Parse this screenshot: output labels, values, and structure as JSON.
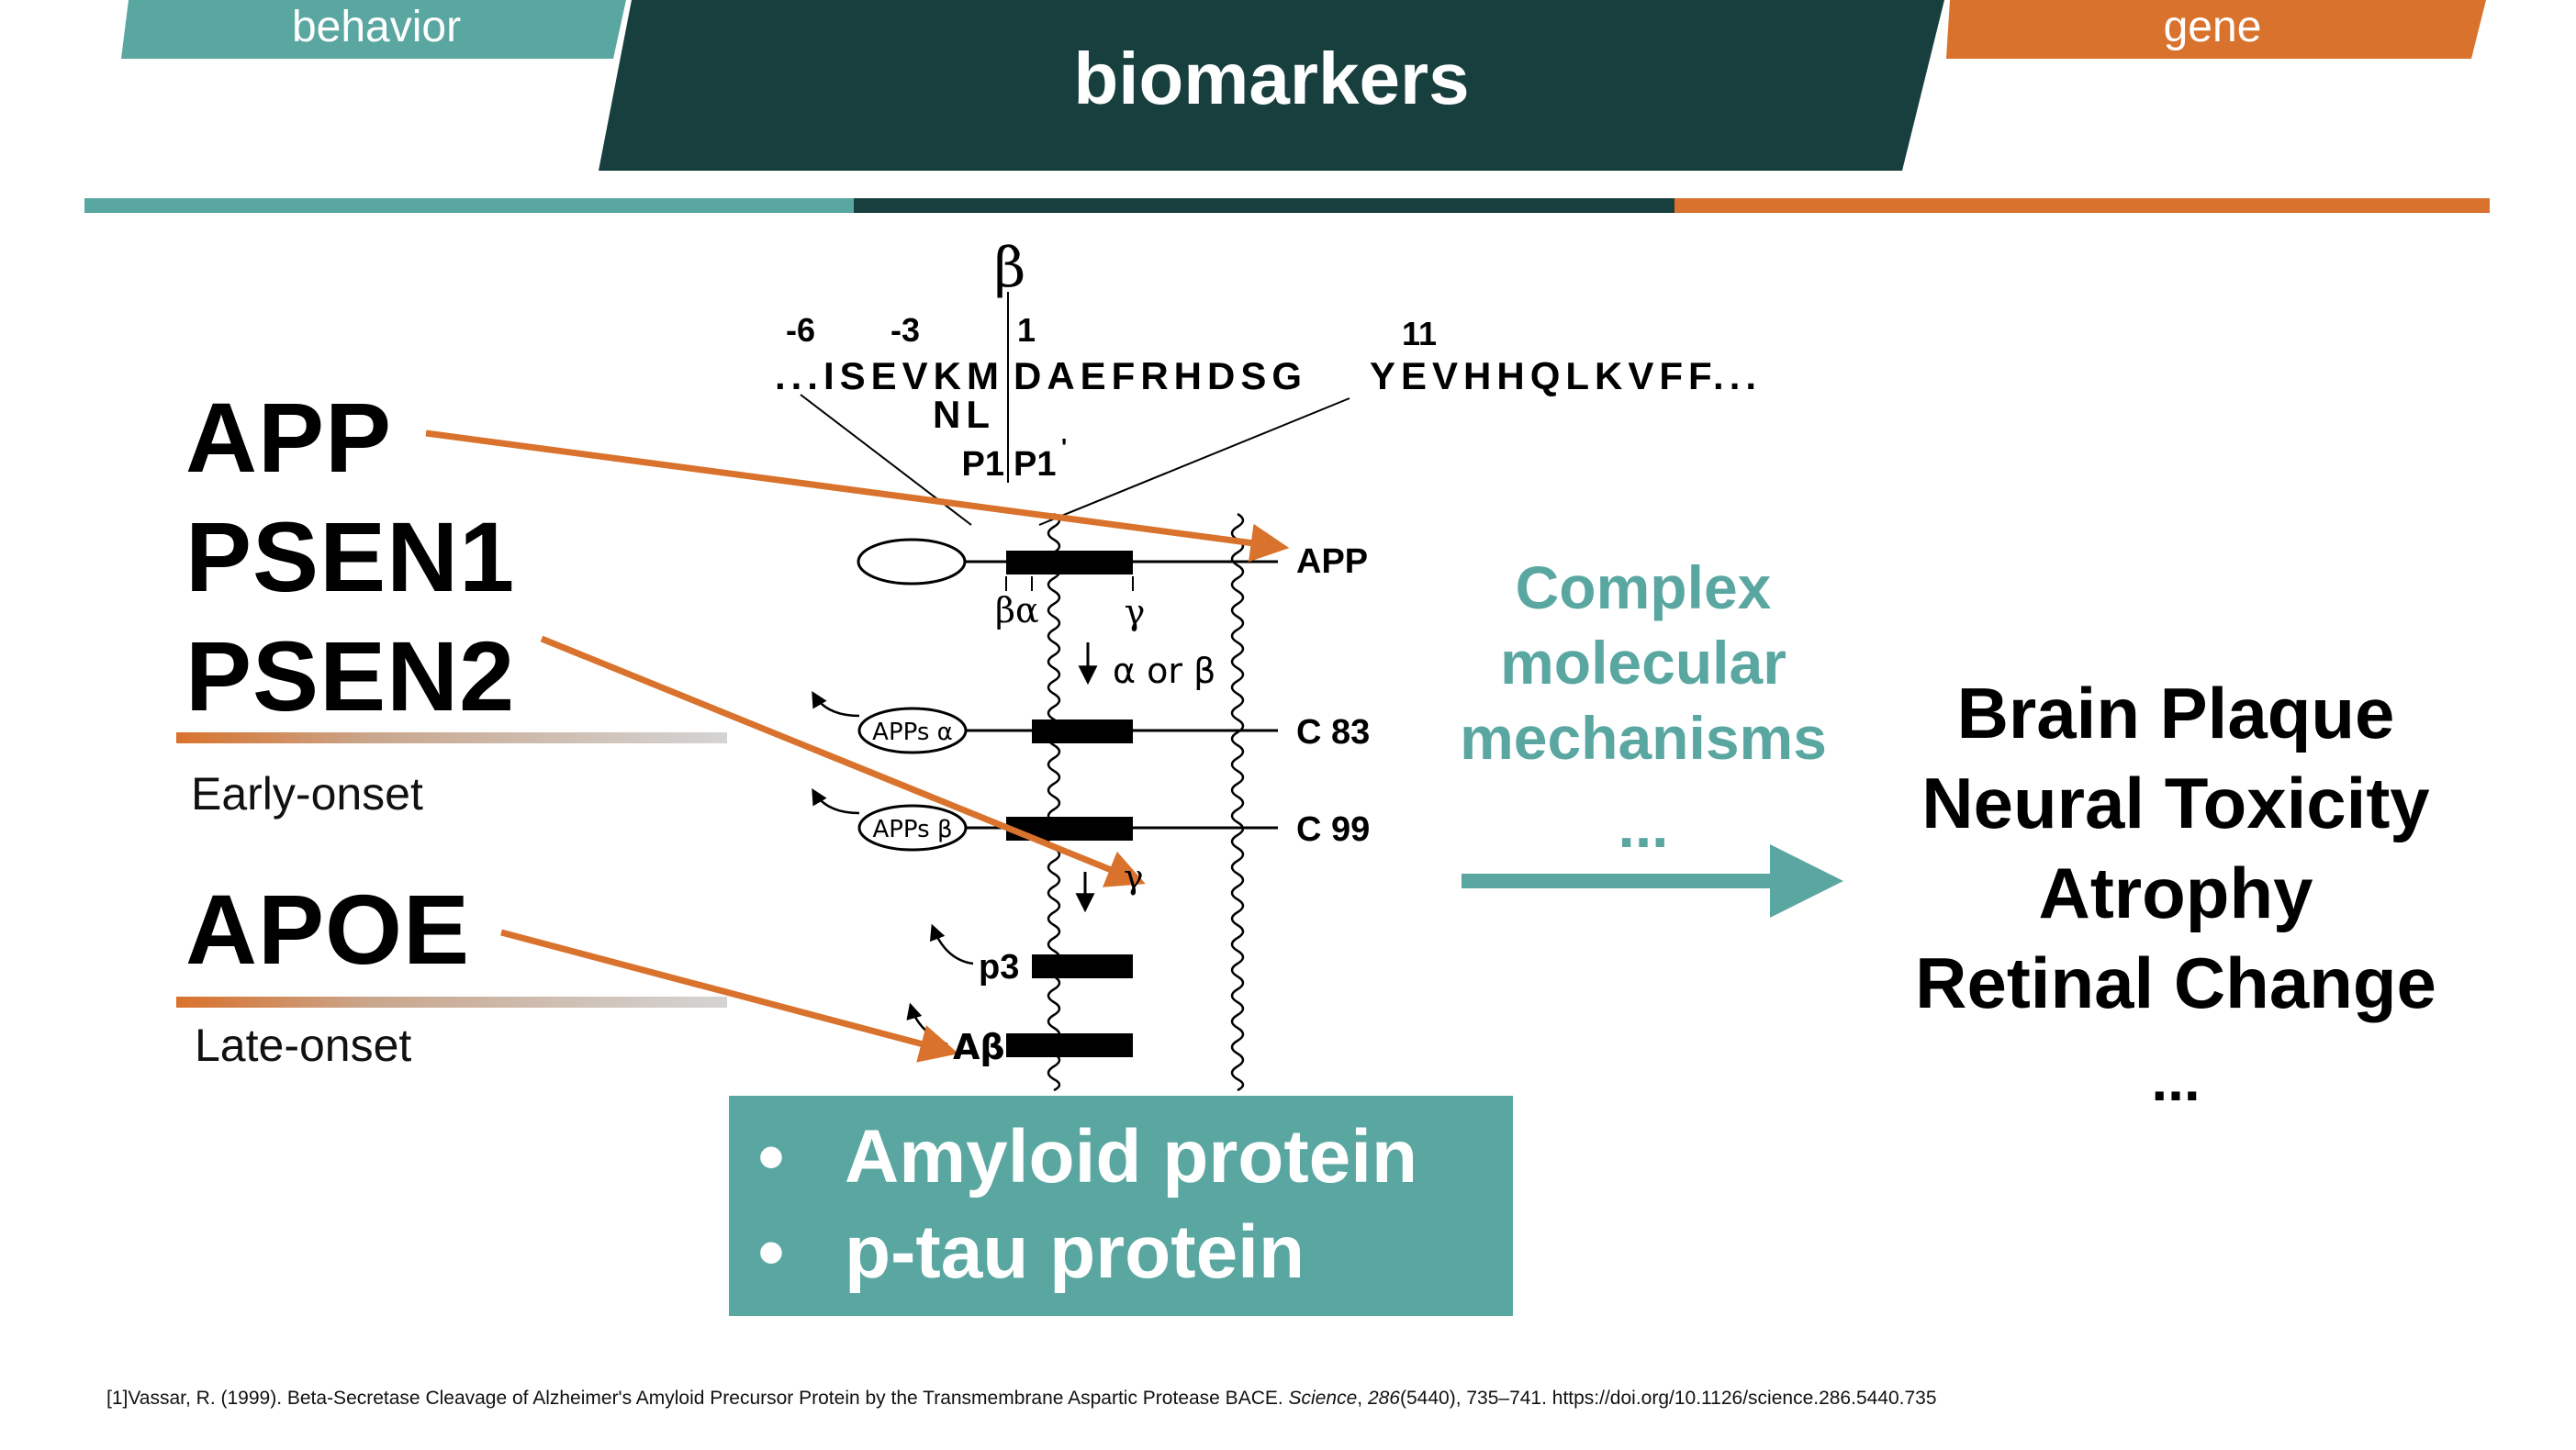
{
  "header": {
    "tab_left": "behavior",
    "tab_center": "biomarkers",
    "tab_right": "gene",
    "colors": {
      "teal": "#5aa7a1",
      "dark": "#173f3e",
      "orange": "#d9722c"
    }
  },
  "genes": {
    "early": [
      "APP",
      "PSEN1",
      "PSEN2"
    ],
    "early_label": "Early-onset",
    "late": [
      "APOE"
    ],
    "late_label": "Late-onset"
  },
  "diagram": {
    "beta_symbol": "β",
    "positions": {
      "m6": "-6",
      "m3": "-3",
      "p1": "1",
      "p11": "11"
    },
    "sequence_left": "...ISEVKM",
    "sequence_mid": "DAEFRHDSG",
    "sequence_right": "YEVHHQLKVFF...",
    "mutation": "NL",
    "p1_label": "P1",
    "p1prime_label": "P1",
    "prime_mark": "'",
    "app_label": "APP",
    "cleavage_labels": {
      "beta_alpha": "βα",
      "gamma": "γ"
    },
    "alpha_or_beta": "α or β",
    "c83_label": "C 83",
    "c99_label": "C 99",
    "apps_alpha": "APPs α",
    "apps_beta": "APPs β",
    "gamma2": "γ",
    "p3_label": "p3",
    "abeta_label": "Aβ"
  },
  "mechanisms": {
    "lines": [
      "Complex",
      "molecular",
      "mechanisms"
    ],
    "ellipsis": "..."
  },
  "outcomes": {
    "items": [
      "Brain Plaque",
      "Neural Toxicity",
      "Atrophy",
      "Retinal Change"
    ],
    "ellipsis": "..."
  },
  "proteins": {
    "bullet": "•",
    "items": [
      "Amyloid protein",
      "p-tau protein"
    ]
  },
  "footnote": {
    "prefix": "[1]Vassar, R. (1999). Beta-Secretase Cleavage of Alzheimer's Amyloid Precursor Protein by the Transmembrane Aspartic Protease BACE. ",
    "journal": "Science",
    "sep": ", ",
    "volume": "286",
    "rest": "(5440), 735–741. https://doi.org/10.1126/science.286.5440.735"
  }
}
